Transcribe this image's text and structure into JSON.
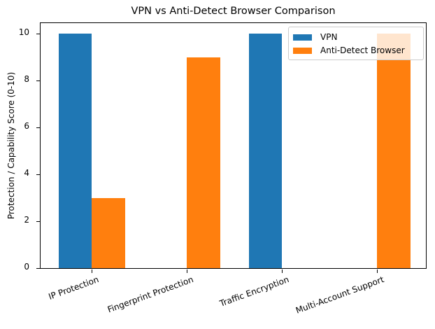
{
  "chart_data": {
    "type": "bar",
    "title": "VPN vs Anti-Detect Browser Comparison",
    "xlabel": "",
    "ylabel": "Protection / Capability Score (0-10)",
    "categories": [
      "IP Protection",
      "Fingerprint Protection",
      "Traffic Encryption",
      "Multi-Account Support"
    ],
    "series": [
      {
        "name": "VPN",
        "color": "#1f77b4",
        "values": [
          10,
          0,
          10,
          0
        ]
      },
      {
        "name": "Anti-Detect Browser",
        "color": "#ff7f0e",
        "values": [
          3,
          9,
          0,
          10
        ]
      }
    ],
    "ylim": [
      0,
      10.5
    ],
    "yticks": [
      0,
      2,
      4,
      6,
      8,
      10
    ],
    "legend_position": "upper right",
    "grid": false,
    "xtick_rotation": 20
  }
}
